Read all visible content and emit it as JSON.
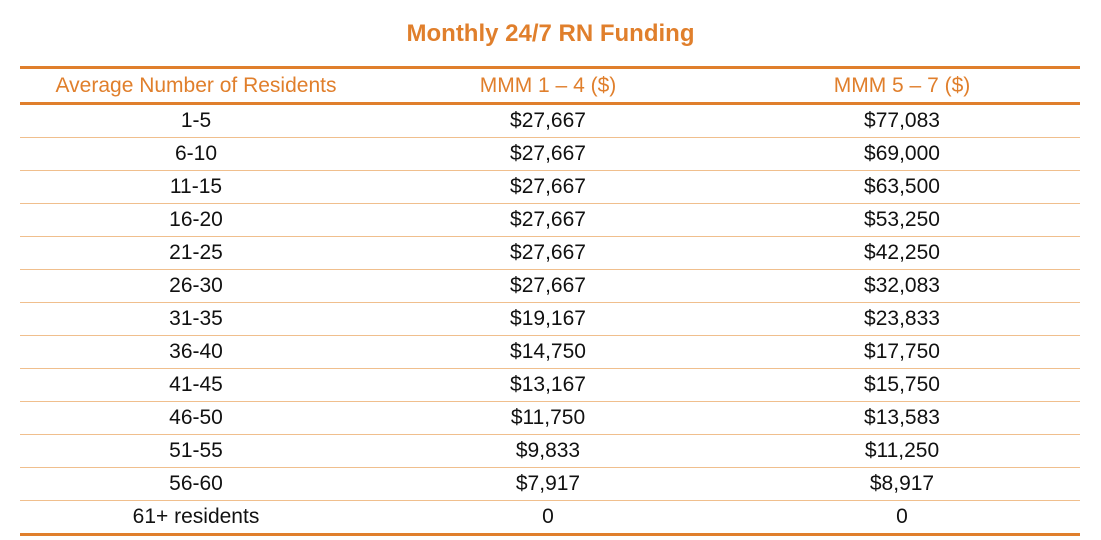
{
  "title": "Monthly 24/7 RN Funding",
  "columns": [
    "Average Number of Residents",
    "MMM 1 – 4 ($)",
    "MMM 5 – 7 ($)"
  ],
  "rows": [
    [
      "1-5",
      "$27,667",
      "$77,083"
    ],
    [
      "6-10",
      "$27,667",
      "$69,000"
    ],
    [
      "11-15",
      "$27,667",
      "$63,500"
    ],
    [
      "16-20",
      "$27,667",
      "$53,250"
    ],
    [
      "21-25",
      "$27,667",
      "$42,250"
    ],
    [
      "26-30",
      "$27,667",
      "$32,083"
    ],
    [
      "31-35",
      "$19,167",
      "$23,833"
    ],
    [
      "36-40",
      "$14,750",
      "$17,750"
    ],
    [
      "41-45",
      "$13,167",
      "$15,750"
    ],
    [
      "46-50",
      "$11,750",
      "$13,583"
    ],
    [
      "51-55",
      "$9,833",
      "$11,250"
    ],
    [
      "56-60",
      "$7,917",
      "$8,917"
    ],
    [
      "61+ residents",
      "0",
      "0"
    ]
  ],
  "colors": {
    "accent": "#e07f2c",
    "row_divider": "#f0bf8d",
    "text": "#111111"
  }
}
